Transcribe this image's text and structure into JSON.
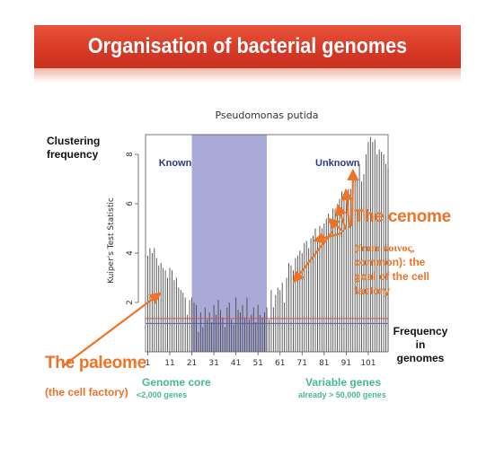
{
  "slide": {
    "title": "Organisation of bacterial genomes"
  },
  "labels": {
    "clustering_line1": "Clustering",
    "clustering_line2": "frequency",
    "freq_line1": "Frequency",
    "freq_line2": "in",
    "freq_line3": "genomes",
    "cenome_title": "The cenome",
    "cenome_line1": "(from κοινος,",
    "cenome_line2": "common): the",
    "cenome_line3": "goal of the cell",
    "cenome_line4": "factory",
    "paleome_title": "The paleome",
    "paleome_sub": "(the cell factory)",
    "genome_core": "Genome core",
    "core_count": "<2,000 genes",
    "variable_genes": "Variable genes",
    "variable_count": "already > 50,000 genes"
  },
  "colors": {
    "banner": "#d83a26",
    "highlight": "#aaaad8",
    "orange": "#ee7328",
    "region_label": "#2a3a86",
    "teal": "#46b898",
    "ref_red": "#d05050",
    "ref_blue": "#5060b0"
  },
  "chart_data": {
    "type": "bar",
    "title": "Pseudomonas putida",
    "ylabel": "Kuiper's Test Statistic",
    "xlabel": "",
    "xlim": [
      0,
      110
    ],
    "ylim": [
      0,
      8.8
    ],
    "xticks": [
      1,
      11,
      21,
      31,
      41,
      51,
      61,
      71,
      81,
      91,
      101
    ],
    "yticks": [
      2,
      4,
      6,
      8
    ],
    "regions": [
      {
        "label": "Known",
        "from": 21,
        "to": 55
      },
      {
        "label": "Unknown",
        "from": 55,
        "to": 110
      }
    ],
    "reference_lines": [
      {
        "color": "red",
        "y": 1.35
      },
      {
        "color": "blue",
        "y": 1.15
      }
    ],
    "x": [
      1,
      2,
      3,
      4,
      5,
      6,
      7,
      8,
      9,
      10,
      11,
      12,
      13,
      14,
      15,
      16,
      17,
      18,
      19,
      20,
      21,
      22,
      23,
      24,
      25,
      26,
      27,
      28,
      29,
      30,
      31,
      32,
      33,
      34,
      35,
      36,
      37,
      38,
      39,
      40,
      41,
      42,
      43,
      44,
      45,
      46,
      47,
      48,
      49,
      50,
      51,
      52,
      53,
      54,
      55,
      56,
      57,
      58,
      59,
      60,
      61,
      62,
      63,
      64,
      65,
      66,
      67,
      68,
      69,
      70,
      71,
      72,
      73,
      74,
      75,
      76,
      77,
      78,
      79,
      80,
      81,
      82,
      83,
      84,
      85,
      86,
      87,
      88,
      89,
      90,
      91,
      92,
      93,
      94,
      95,
      96,
      97,
      98,
      99,
      100,
      101,
      102,
      103,
      104,
      105,
      106,
      107,
      108,
      109,
      110
    ],
    "values": [
      3.9,
      4.2,
      4.0,
      4.2,
      3.8,
      3.5,
      3.6,
      3.4,
      3.3,
      3.0,
      3.4,
      3.3,
      2.9,
      3.0,
      2.6,
      2.5,
      2.4,
      2.2,
      1.5,
      2.1,
      2.2,
      2.0,
      1.9,
      0.8,
      1.6,
      1.0,
      1.8,
      1.3,
      1.6,
      1.2,
      1.9,
      1.5,
      2.1,
      1.7,
      1.4,
      1.0,
      1.8,
      2.0,
      1.3,
      1.1,
      2.2,
      1.7,
      1.6,
      1.9,
      1.4,
      2.2,
      1.3,
      1.5,
      1.8,
      1.2,
      1.9,
      1.5,
      1.4,
      1.6,
      1.8,
      1.3,
      2.5,
      1.8,
      2.3,
      2.6,
      2.5,
      2.8,
      2.0,
      3.0,
      3.6,
      3.5,
      3.3,
      3.8,
      3.9,
      4.1,
      4.0,
      4.4,
      4.5,
      4.2,
      4.6,
      4.7,
      5.0,
      4.5,
      5.1,
      5.0,
      5.2,
      5.4,
      5.6,
      5.4,
      5.8,
      5.8,
      6.0,
      6.2,
      6.5,
      6.2,
      6.1,
      6.6,
      6.6,
      6.8,
      7.0,
      7.0,
      7.6,
      6.9,
      7.2,
      8.0,
      8.5,
      8.7,
      8.5,
      8.6,
      8.0,
      8.2,
      8.1,
      8.0,
      7.6,
      7.4
    ]
  }
}
